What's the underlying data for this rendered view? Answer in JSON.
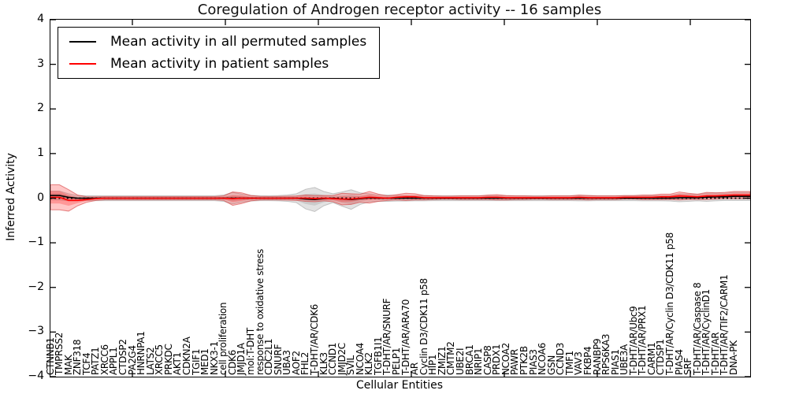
{
  "figure_title": "Coregulation of Androgen receptor activity -- 16 samples",
  "axes": {
    "ylabel": "Inferred Activity",
    "xlabel": "Cellular Entities",
    "ytick_labels": [
      "4",
      "3",
      "2",
      "1",
      "0",
      "−1",
      "−2",
      "−3",
      "−4"
    ],
    "ylim": [
      -4,
      4
    ]
  },
  "legend": {
    "items": [
      {
        "label": "Mean activity in all permuted samples",
        "color": "#000000"
      },
      {
        "label": "Mean activity in patient samples",
        "color": "#ff0000"
      }
    ]
  },
  "chart_data": {
    "type": "area",
    "title": "Coregulation of Androgen receptor activity -- 16 samples",
    "xlabel": "Cellular Entities",
    "ylabel": "Inferred Activity",
    "ylim": [
      -4,
      4
    ],
    "grid": false,
    "legend_position": "upper left",
    "zero_line": {
      "y": 0,
      "style": "dotted",
      "color": "#000000"
    },
    "colors": {
      "permuted_line": "#000000",
      "patient_line": "#ff0000",
      "permuted_band": "#9a9a9a",
      "patient_band": "#ff3c3c"
    },
    "categories": [
      "CTNNB1",
      "TMPRSS2",
      "MAK",
      "ZNF318",
      "TCF4",
      "PATZ1",
      "XRCC6",
      "APPL1",
      "CTDSP2",
      "PA2G4",
      "HNRNPA1",
      "LATS2",
      "XRCC5",
      "PRKDC",
      "AKT1",
      "CDKN2A",
      "TGIF1",
      "MED1",
      "NKX3-1",
      "cell proliferation",
      "CDK6",
      "JMJD1A",
      "mol:T-DHT",
      "response to oxidative stress",
      "CDC2L1",
      "SNURF",
      "UBA3",
      "AOF2",
      "FHL2",
      "T-DHT/AR/CDK6",
      "KLK3",
      "CCND1",
      "JMJD2C",
      "SVIL",
      "NCOA4",
      "KLK2",
      "TGFB1I1",
      "T-DHT/AR/SNURF",
      "PELP1",
      "T-DHT/AR/ARA70",
      "AR",
      "Cyclin D3/CDK11 p58",
      "HIP1",
      "ZMIZ1",
      "CMTM2",
      "UBE2I",
      "BRCA1",
      "NRIP1",
      "CASP8",
      "PRDX1",
      "NCOA2",
      "PAWR",
      "PTK2B",
      "PIAS3",
      "NCOA6",
      "GSN",
      "CCND3",
      "TMF1",
      "VAV3",
      "FKBP4",
      "RANBP9",
      "RPS6KA3",
      "PIAS1",
      "UBE3A",
      "T-DHT/AR/Ubc9",
      "T-DHT/AR/PRX1",
      "CARM1",
      "CTDSP1",
      "T-DHT/AR/Cyclin D3/CDK11 p58",
      "PIAS4",
      "SRF",
      "T-DHT/AR/Caspase 8",
      "T-DHT/AR/CyclinD1",
      "T-DHT/AR",
      "T-DHT/AR/TIF2/CARM1",
      "DNA-PK"
    ],
    "series": [
      {
        "name": "Mean activity in all permuted samples",
        "type": "line",
        "color": "#000000",
        "values": [
          0.06,
          0.02,
          0,
          0,
          0,
          0,
          0,
          0,
          0,
          0,
          0,
          0,
          0,
          0,
          0,
          0,
          0,
          0,
          0,
          0,
          0,
          0,
          0,
          0,
          0,
          0,
          0,
          -0.02,
          -0.03,
          -0.01,
          0,
          -0.02,
          -0.03,
          -0.01,
          0.01,
          0,
          0,
          0,
          0,
          0,
          0,
          0,
          0,
          0,
          0,
          0,
          0,
          0,
          0,
          0,
          0,
          0,
          0,
          0,
          0,
          0,
          0,
          0,
          0,
          0,
          0,
          0,
          0,
          0,
          0,
          0,
          0,
          0,
          0.01,
          0.01,
          0.01,
          0.02,
          0.03,
          0.03,
          0.04,
          0.04
        ]
      },
      {
        "name": "Mean activity in patient samples",
        "type": "line",
        "color": "#ff0000",
        "values": [
          0.02,
          -0.05,
          -0.05,
          -0.03,
          -0.01,
          0,
          0,
          0,
          0,
          0,
          0,
          0,
          0,
          0,
          0,
          0,
          0,
          0,
          0,
          -0.01,
          0,
          0,
          0,
          0,
          0,
          0,
          0,
          0,
          -0.01,
          0,
          -0.01,
          -0.02,
          -0.02,
          0,
          0.02,
          0.01,
          0,
          0.02,
          0.03,
          0.03,
          0.01,
          0.01,
          0.01,
          0.01,
          0.01,
          0.01,
          0.01,
          0.02,
          0.02,
          0.01,
          0.01,
          0.01,
          0.01,
          0.01,
          0.01,
          0.01,
          0.01,
          0.02,
          0.01,
          0.01,
          0.01,
          0.01,
          0.02,
          0.02,
          0.02,
          0.02,
          0.03,
          0.03,
          0.05,
          0.04,
          0.03,
          0.05,
          0.05,
          0.06,
          0.07,
          0.07
        ]
      },
      {
        "name": "Permuted samples activity spread (half-width)",
        "type": "band",
        "color": "#9a9a9a",
        "values": [
          0.1,
          0.08,
          0.06,
          0.055,
          0.055,
          0.055,
          0.055,
          0.055,
          0.055,
          0.055,
          0.055,
          0.055,
          0.055,
          0.055,
          0.055,
          0.055,
          0.055,
          0.055,
          0.07,
          0.13,
          0.09,
          0.065,
          0.055,
          0.055,
          0.06,
          0.07,
          0.1,
          0.22,
          0.27,
          0.16,
          0.1,
          0.16,
          0.22,
          0.13,
          0.09,
          0.07,
          0.07,
          0.065,
          0.065,
          0.06,
          0.06,
          0.055,
          0.055,
          0.055,
          0.055,
          0.055,
          0.055,
          0.055,
          0.055,
          0.055,
          0.055,
          0.055,
          0.055,
          0.055,
          0.055,
          0.055,
          0.055,
          0.06,
          0.06,
          0.055,
          0.055,
          0.055,
          0.055,
          0.055,
          0.06,
          0.06,
          0.06,
          0.065,
          0.09,
          0.08,
          0.07,
          0.09,
          0.09,
          0.08,
          0.09,
          0.09
        ]
      },
      {
        "name": "Patient samples activity spread (half-width)",
        "type": "band",
        "color": "#ff3c3c",
        "values": [
          0.28,
          0.24,
          0.12,
          0.06,
          0.04,
          0.035,
          0.035,
          0.035,
          0.035,
          0.035,
          0.035,
          0.035,
          0.035,
          0.035,
          0.035,
          0.035,
          0.035,
          0.035,
          0.05,
          0.15,
          0.12,
          0.06,
          0.04,
          0.035,
          0.04,
          0.045,
          0.05,
          0.07,
          0.07,
          0.06,
          0.07,
          0.13,
          0.12,
          0.09,
          0.13,
          0.08,
          0.05,
          0.06,
          0.08,
          0.07,
          0.05,
          0.04,
          0.035,
          0.035,
          0.04,
          0.04,
          0.04,
          0.05,
          0.06,
          0.05,
          0.04,
          0.04,
          0.035,
          0.035,
          0.04,
          0.04,
          0.04,
          0.05,
          0.05,
          0.04,
          0.04,
          0.04,
          0.04,
          0.04,
          0.05,
          0.05,
          0.06,
          0.06,
          0.09,
          0.07,
          0.06,
          0.08,
          0.07,
          0.07,
          0.08,
          0.08
        ]
      }
    ]
  }
}
